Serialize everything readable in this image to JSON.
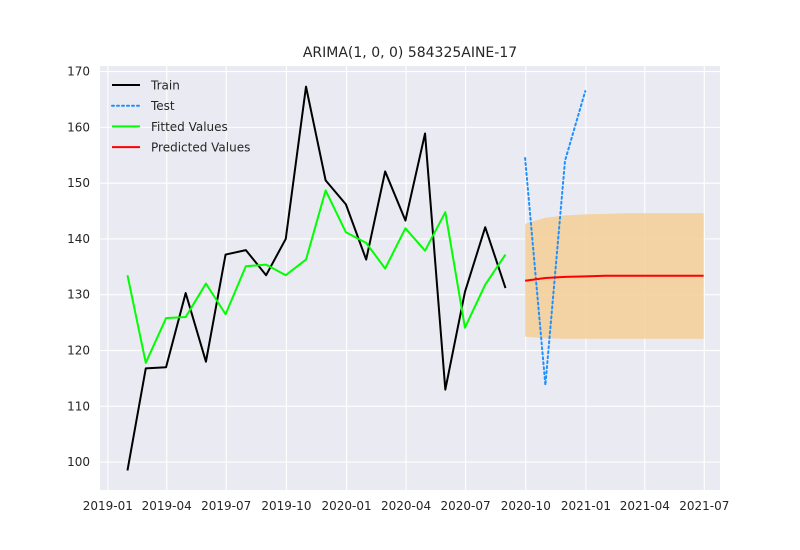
{
  "chart_data": {
    "type": "line",
    "title": "ARIMA(1, 0, 0) 584325AINE-17",
    "xlabel": "",
    "ylabel": "",
    "ylim": [
      95,
      171
    ],
    "xlim": [
      "2018-12-20",
      "2021-07-25"
    ],
    "grid": true,
    "legend": "top-left",
    "background": "#EAEAF2",
    "xticks": [
      "2019-01",
      "2019-04",
      "2019-07",
      "2019-10",
      "2020-01",
      "2020-04",
      "2020-07",
      "2020-10",
      "2021-01",
      "2021-04",
      "2021-07"
    ],
    "yticks": [
      100,
      110,
      120,
      130,
      140,
      150,
      160,
      170
    ],
    "series": [
      {
        "name": "Train",
        "color": "#000000",
        "style": "solid",
        "x": [
          "2019-01-31",
          "2019-02-28",
          "2019-03-31",
          "2019-04-30",
          "2019-05-31",
          "2019-06-30",
          "2019-07-31",
          "2019-08-31",
          "2019-09-30",
          "2019-10-31",
          "2019-11-30",
          "2019-12-31",
          "2020-01-31",
          "2020-02-29",
          "2020-03-31",
          "2020-04-30",
          "2020-05-31",
          "2020-06-30",
          "2020-07-31",
          "2020-08-31"
        ],
        "values": [
          98.5,
          116.8,
          117.0,
          130.3,
          118.0,
          137.2,
          138.0,
          133.5,
          140.0,
          167.3,
          150.5,
          146.2,
          136.3,
          152.1,
          143.3,
          158.9,
          113.0,
          130.5,
          142.1,
          131.2
        ]
      },
      {
        "name": "Test",
        "color": "#1E90FF",
        "style": "dotted",
        "x": [
          "2020-09-30",
          "2020-10-31",
          "2020-11-30",
          "2020-12-31"
        ],
        "values": [
          154.5,
          113.8,
          154.0,
          166.5
        ]
      },
      {
        "name": "Fitted Values",
        "color": "#00FF00",
        "style": "solid",
        "x": [
          "2019-01-31",
          "2019-02-28",
          "2019-03-31",
          "2019-04-30",
          "2019-05-31",
          "2019-06-30",
          "2019-07-31",
          "2019-08-31",
          "2019-09-30",
          "2019-10-31",
          "2019-11-30",
          "2019-12-31",
          "2020-01-31",
          "2020-02-29",
          "2020-03-31",
          "2020-04-30",
          "2020-05-31",
          "2020-06-30",
          "2020-07-31",
          "2020-08-31"
        ],
        "values": [
          133.5,
          117.8,
          125.8,
          126.0,
          132.0,
          126.5,
          135.1,
          135.4,
          133.5,
          136.3,
          148.7,
          141.2,
          139.3,
          134.7,
          141.9,
          137.9,
          144.8,
          124.1,
          131.8,
          137.2
        ]
      },
      {
        "name": "Predicted Values",
        "color": "#FF0000",
        "style": "solid",
        "x": [
          "2020-09-30",
          "2020-10-31",
          "2020-11-30",
          "2020-12-31",
          "2021-01-31",
          "2021-02-28",
          "2021-03-31",
          "2021-04-30",
          "2021-05-31",
          "2021-06-30"
        ],
        "values": [
          132.5,
          133.0,
          133.2,
          133.3,
          133.4,
          133.4,
          133.4,
          133.4,
          133.4,
          133.4
        ]
      }
    ],
    "confidence_band": {
      "color": "#F5CC8F",
      "x": [
        "2020-09-30",
        "2020-10-31",
        "2020-11-30",
        "2020-12-31",
        "2021-01-31",
        "2021-02-28",
        "2021-03-31",
        "2021-04-30",
        "2021-05-31",
        "2021-06-30"
      ],
      "lower": [
        122.5,
        122.2,
        122.1,
        122.1,
        122.1,
        122.1,
        122.1,
        122.1,
        122.1,
        122.1
      ],
      "upper": [
        142.7,
        143.8,
        144.2,
        144.4,
        144.5,
        144.6,
        144.6,
        144.6,
        144.6,
        144.6
      ]
    }
  }
}
